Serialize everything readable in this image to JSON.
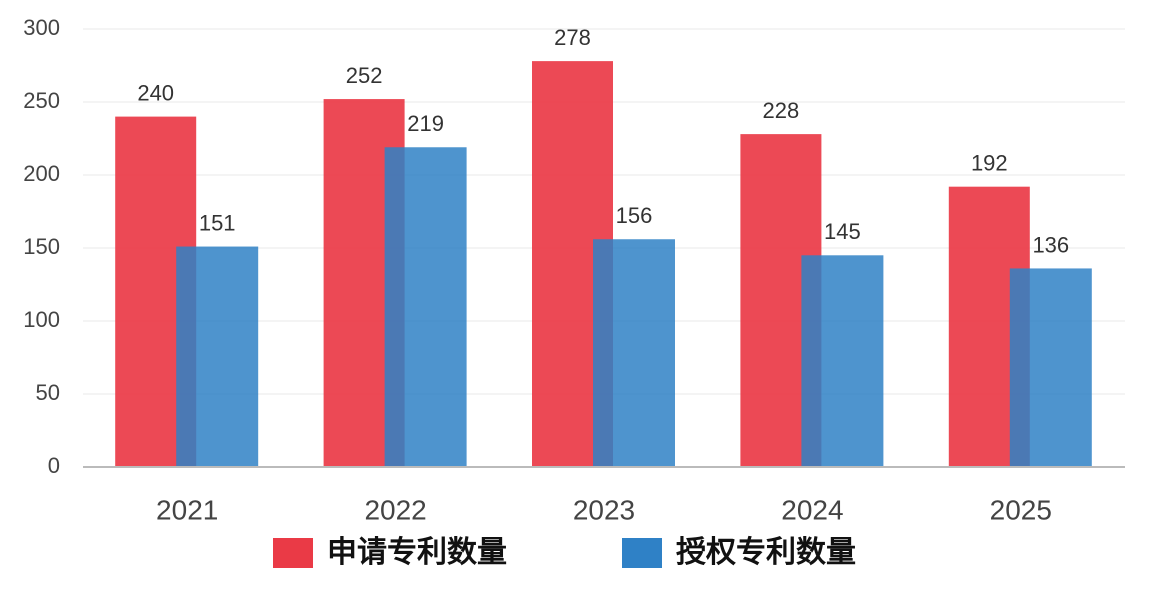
{
  "chart_data": {
    "type": "bar",
    "categories": [
      "2021",
      "2022",
      "2023",
      "2024",
      "2025"
    ],
    "series": [
      {
        "name": "申请专利数量",
        "color": "#ea3a46",
        "values": [
          240,
          252,
          278,
          228,
          192
        ]
      },
      {
        "name": "授权专利数量",
        "color": "#2f81c6",
        "values": [
          151,
          219,
          156,
          145,
          136
        ]
      }
    ],
    "ylim": [
      0,
      300
    ],
    "yticks": [
      0,
      50,
      100,
      150,
      200,
      250,
      300
    ],
    "grid": true,
    "legend": "bottom"
  }
}
